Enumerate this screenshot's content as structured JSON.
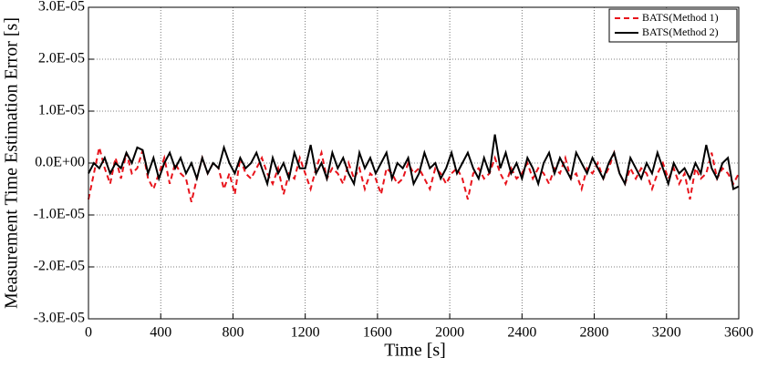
{
  "chart_data": {
    "type": "line",
    "xlabel": "Time [s]",
    "ylabel": "Measurement Time Estimation Error [s]",
    "x": [
      0,
      30,
      60,
      90,
      120,
      150,
      180,
      210,
      240,
      270,
      300,
      330,
      360,
      390,
      420,
      450,
      480,
      510,
      540,
      570,
      600,
      630,
      660,
      690,
      720,
      750,
      780,
      810,
      840,
      870,
      900,
      930,
      960,
      990,
      1020,
      1050,
      1080,
      1110,
      1140,
      1170,
      1200,
      1230,
      1260,
      1290,
      1320,
      1350,
      1380,
      1410,
      1440,
      1470,
      1500,
      1530,
      1560,
      1590,
      1620,
      1650,
      1680,
      1710,
      1740,
      1770,
      1800,
      1830,
      1860,
      1890,
      1920,
      1950,
      1980,
      2010,
      2040,
      2070,
      2100,
      2130,
      2160,
      2190,
      2220,
      2250,
      2280,
      2310,
      2340,
      2370,
      2400,
      2430,
      2460,
      2490,
      2520,
      2550,
      2580,
      2610,
      2640,
      2670,
      2700,
      2730,
      2760,
      2790,
      2820,
      2850,
      2880,
      2910,
      2940,
      2970,
      3000,
      3030,
      3060,
      3090,
      3120,
      3150,
      3180,
      3210,
      3240,
      3270,
      3300,
      3330,
      3360,
      3390,
      3420,
      3450,
      3480,
      3510,
      3540,
      3570,
      3600
    ],
    "series": [
      {
        "name": "BATS(Method 1)",
        "color": "#e8131b",
        "dash": true,
        "values": [
          -7e-06,
          -2e-06,
          3e-06,
          -1e-06,
          -4e-06,
          1e-06,
          -3e-06,
          2e-06,
          -2e-06,
          -1e-06,
          2.5e-06,
          -3e-06,
          -5e-06,
          -2e-06,
          1e-06,
          -4e-06,
          0,
          -2e-06,
          -3e-06,
          -7.5e-06,
          -3e-06,
          1e-06,
          -2e-06,
          0,
          -1e-06,
          -5e-06,
          -2e-06,
          -6e-06,
          1e-06,
          -2e-06,
          -3e-06,
          -1e-06,
          1e-06,
          -2e-06,
          -4e-06,
          -1e-06,
          -6e-06,
          -2e-06,
          -3e-06,
          1e-06,
          -2e-06,
          -5e-06,
          -1e-06,
          2e-06,
          -3e-06,
          -1e-06,
          -2e-06,
          -4e-06,
          0,
          -3e-06,
          -1e-06,
          -5e-06,
          -2e-06,
          -3e-06,
          -6e-06,
          -1e-06,
          -2e-06,
          -4e-06,
          -3e-06,
          0,
          -2e-06,
          -1e-06,
          -3e-06,
          -5e-06,
          -1e-06,
          -2e-06,
          -4e-06,
          -2e-06,
          -1e-06,
          -3e-06,
          -7e-06,
          -2e-06,
          -1e-06,
          -3e-06,
          -2e-06,
          1e-06,
          -2e-06,
          -4e-06,
          -1e-06,
          -3e-06,
          -2e-06,
          0,
          -3e-06,
          -1e-06,
          -2e-06,
          -4e-06,
          -1e-06,
          -2e-06,
          1e-06,
          -3e-06,
          -2e-06,
          -5e-06,
          -1e-06,
          -2e-06,
          0,
          -3e-06,
          -1e-06,
          2e-06,
          -2e-06,
          -4e-06,
          -1e-06,
          -3e-06,
          -1e-06,
          -2e-06,
          -5e-06,
          -2e-06,
          0,
          -3e-06,
          -1e-06,
          -4e-06,
          -2e-06,
          -7e-06,
          -1e-06,
          -3e-06,
          -2e-06,
          2e-06,
          -3e-06,
          -1e-06,
          -2e-06,
          -4e-06,
          -2e-06
        ]
      },
      {
        "name": "BATS(Method 2)",
        "color": "#000000",
        "dash": false,
        "values": [
          -2e-06,
          0,
          -1e-06,
          1e-06,
          -2e-06,
          0,
          -1e-06,
          2e-06,
          0,
          3e-06,
          2.5e-06,
          -2e-06,
          1e-06,
          -3e-06,
          0,
          2e-06,
          -1e-06,
          1e-06,
          -2e-06,
          0,
          -3e-06,
          1e-06,
          -2e-06,
          0,
          -1e-06,
          3e-06,
          0,
          -2e-06,
          1e-06,
          -1e-06,
          0,
          2e-06,
          -1e-06,
          -4e-06,
          1e-06,
          -2e-06,
          0,
          -3e-06,
          2e-06,
          -1e-06,
          -1e-06,
          3.5e-06,
          -2e-06,
          0,
          -3e-06,
          2e-06,
          -1e-06,
          1e-06,
          -2e-06,
          -4e-06,
          2e-06,
          -1e-06,
          1e-06,
          -2e-06,
          0,
          2e-06,
          -3e-06,
          0,
          -1e-06,
          1e-06,
          -4e-06,
          -2e-06,
          2e-06,
          -1e-06,
          0,
          -3e-06,
          -1e-06,
          2e-06,
          -2e-06,
          0,
          2e-06,
          -1e-06,
          -3e-06,
          1e-06,
          -2e-06,
          5.5e-06,
          -1e-06,
          2e-06,
          -2e-06,
          0,
          -3e-06,
          1e-06,
          -1e-06,
          -4e-06,
          0,
          2e-06,
          -2e-06,
          1e-06,
          -1e-06,
          -3e-06,
          2e-06,
          0,
          -2e-06,
          1e-06,
          -1e-06,
          -3e-06,
          0,
          2e-06,
          -2e-06,
          -4e-06,
          1e-06,
          -1e-06,
          -3e-06,
          0,
          -2e-06,
          2e-06,
          -1e-06,
          -4e-06,
          0,
          -2e-06,
          -1e-06,
          -3e-06,
          0,
          -2e-06,
          3.5e-06,
          -1e-06,
          -3e-06,
          0,
          1e-06,
          -5e-06,
          -4.5e-06
        ]
      }
    ],
    "xlim": [
      0,
      3600
    ],
    "xticks": [
      0,
      400,
      800,
      1200,
      1600,
      2000,
      2400,
      2800,
      3200,
      3600
    ],
    "ylim": [
      -3e-05,
      3e-05
    ],
    "yticks": [
      {
        "value": -3e-05,
        "label": "-3.0E-05"
      },
      {
        "value": -2e-05,
        "label": "-2.0E-05"
      },
      {
        "value": -1e-05,
        "label": "-1.0E-05"
      },
      {
        "value": 0,
        "label": "0.0E+00"
      },
      {
        "value": 1e-05,
        "label": "1.0E-05"
      },
      {
        "value": 2e-05,
        "label": "2.0E-05"
      },
      {
        "value": 3e-05,
        "label": "3.0E-05"
      }
    ],
    "grid": true,
    "legend": "upper right"
  }
}
